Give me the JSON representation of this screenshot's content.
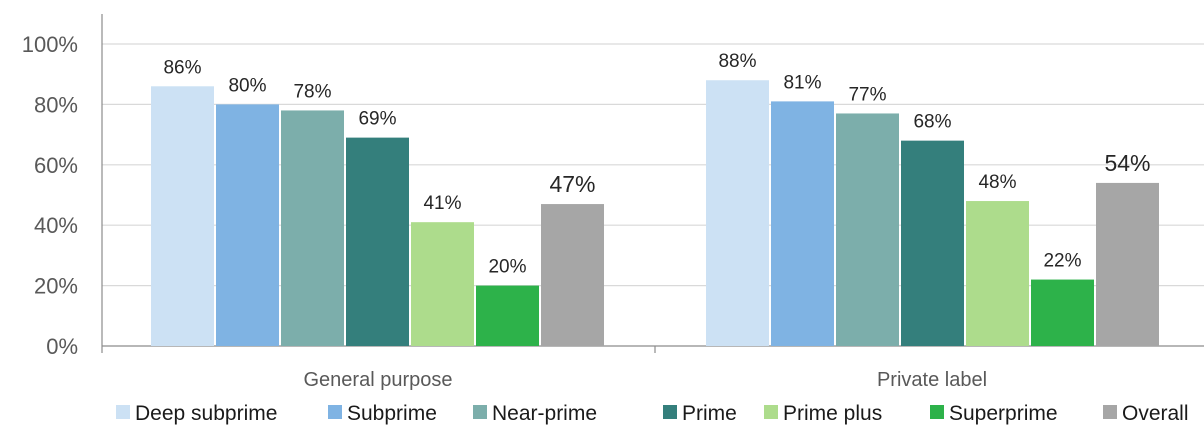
{
  "chart_data": {
    "type": "bar",
    "categories": [
      "General purpose",
      "Private label"
    ],
    "series": [
      {
        "name": "Deep subprime",
        "color": "#cce1f4",
        "values": [
          86,
          88
        ],
        "labels": [
          "86%",
          "88%"
        ]
      },
      {
        "name": "Subprime",
        "color": "#7fb3e3",
        "values": [
          80,
          81
        ],
        "labels": [
          "80%",
          "81%"
        ]
      },
      {
        "name": "Near-prime",
        "color": "#7caeab",
        "values": [
          78,
          77
        ],
        "labels": [
          "78%",
          "77%"
        ]
      },
      {
        "name": "Prime",
        "color": "#347f7c",
        "values": [
          69,
          68
        ],
        "labels": [
          "69%",
          "68%"
        ]
      },
      {
        "name": "Prime plus",
        "color": "#addc8c",
        "values": [
          41,
          48
        ],
        "labels": [
          "41%",
          "48%"
        ]
      },
      {
        "name": "Superprime",
        "color": "#2db24a",
        "values": [
          20,
          22
        ],
        "labels": [
          "20%",
          "22%"
        ]
      },
      {
        "name": "Overall",
        "color": "#a6a6a6",
        "values": [
          47,
          54
        ],
        "labels": [
          "47%",
          "54%"
        ]
      }
    ],
    "yticks": [
      "0%",
      "20%",
      "40%",
      "60%",
      "80%",
      "100%"
    ],
    "ylim": [
      0,
      100
    ],
    "grid": true,
    "legend": "bottom"
  }
}
